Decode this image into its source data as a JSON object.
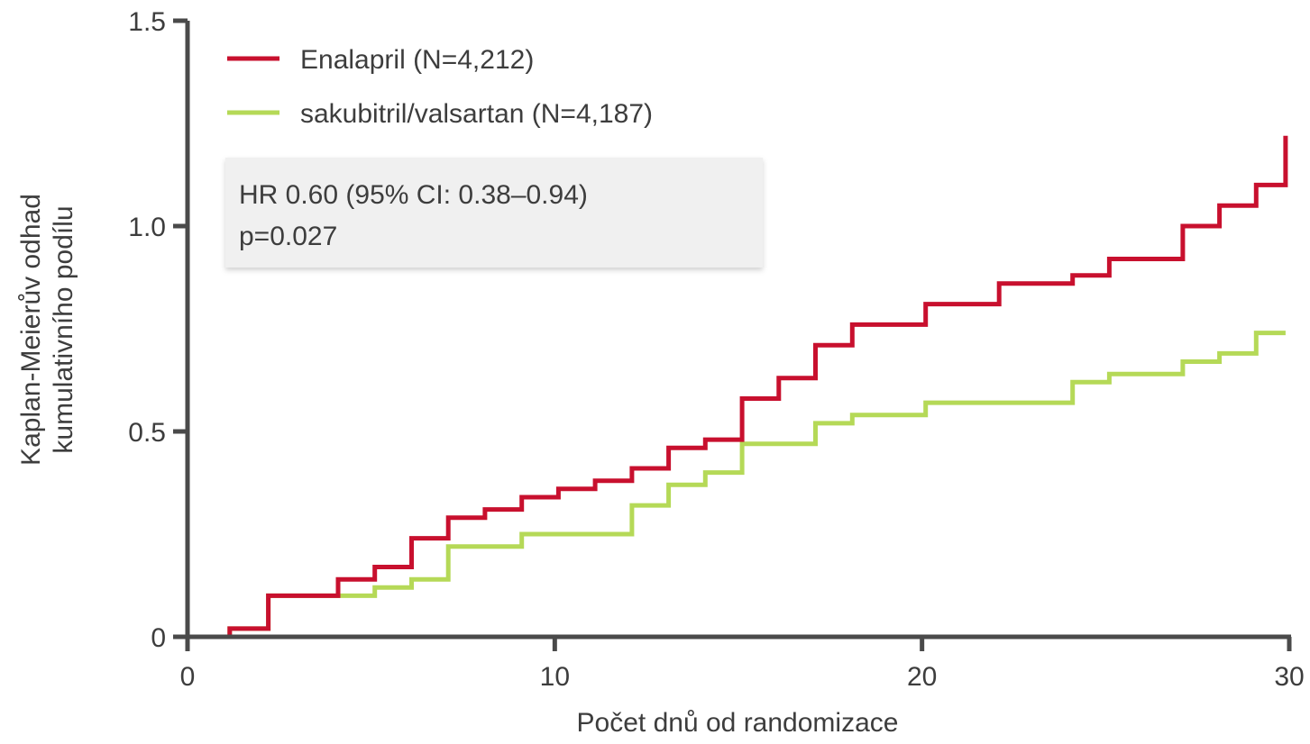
{
  "chart_data": {
    "type": "line",
    "step": true,
    "title": "",
    "xlabel": "Počet dnů od randomizace",
    "ylabel_lines": [
      "Kaplan-Meierův odhad",
      "kumulativního podílu"
    ],
    "xlim": [
      0,
      30
    ],
    "ylim": [
      0,
      1.5
    ],
    "x_ticks": [
      0,
      10,
      20,
      30
    ],
    "x_tick_labels": [
      "0",
      "10",
      "20",
      "30"
    ],
    "y_ticks": [
      0,
      0.5,
      1.0,
      1.5
    ],
    "y_tick_labels": [
      "0",
      "0.5",
      "1.0",
      "1.5"
    ],
    "grid": false,
    "legend_position": "top-left",
    "series": [
      {
        "name": "Enalapril (N=4,212)",
        "color": "#c8102e",
        "x": [
          0,
          1.15,
          2.2,
          4.1,
          5.1,
          6.1,
          7.1,
          8.1,
          9.1,
          10.1,
          11.1,
          12.1,
          13.1,
          14.1,
          15.1,
          16.1,
          17.1,
          18.1,
          20.1,
          22.1,
          24.1,
          25.1,
          27.1,
          28.1,
          29.1,
          29.9,
          29.9
        ],
        "y": [
          0,
          0.02,
          0.1,
          0.14,
          0.17,
          0.24,
          0.29,
          0.31,
          0.34,
          0.36,
          0.38,
          0.41,
          0.46,
          0.48,
          0.58,
          0.63,
          0.71,
          0.76,
          0.81,
          0.86,
          0.88,
          0.92,
          1.0,
          1.05,
          1.1,
          1.1,
          1.22
        ]
      },
      {
        "name": "sakubitril/valsartan (N=4,187)",
        "color": "#b5d957",
        "x": [
          0,
          1.15,
          2.2,
          4.1,
          5.1,
          6.1,
          7.1,
          9.1,
          12.1,
          13.1,
          14.1,
          15.1,
          17.1,
          18.1,
          20.1,
          24.1,
          25.1,
          27.1,
          28.1,
          29.1,
          29.9
        ],
        "y": [
          0,
          0.02,
          0.1,
          0.1,
          0.12,
          0.14,
          0.22,
          0.25,
          0.32,
          0.37,
          0.4,
          0.47,
          0.52,
          0.54,
          0.57,
          0.62,
          0.64,
          0.67,
          0.69,
          0.74,
          0.74
        ]
      }
    ],
    "annotation": {
      "lines": [
        "HR 0.60 (95% CI: 0.38–0.94)",
        "p=0.027"
      ]
    }
  },
  "colors": {
    "axis": "#4a4a4a",
    "text": "#3d3d3d",
    "annotation_bg": "#f0f0f0"
  }
}
